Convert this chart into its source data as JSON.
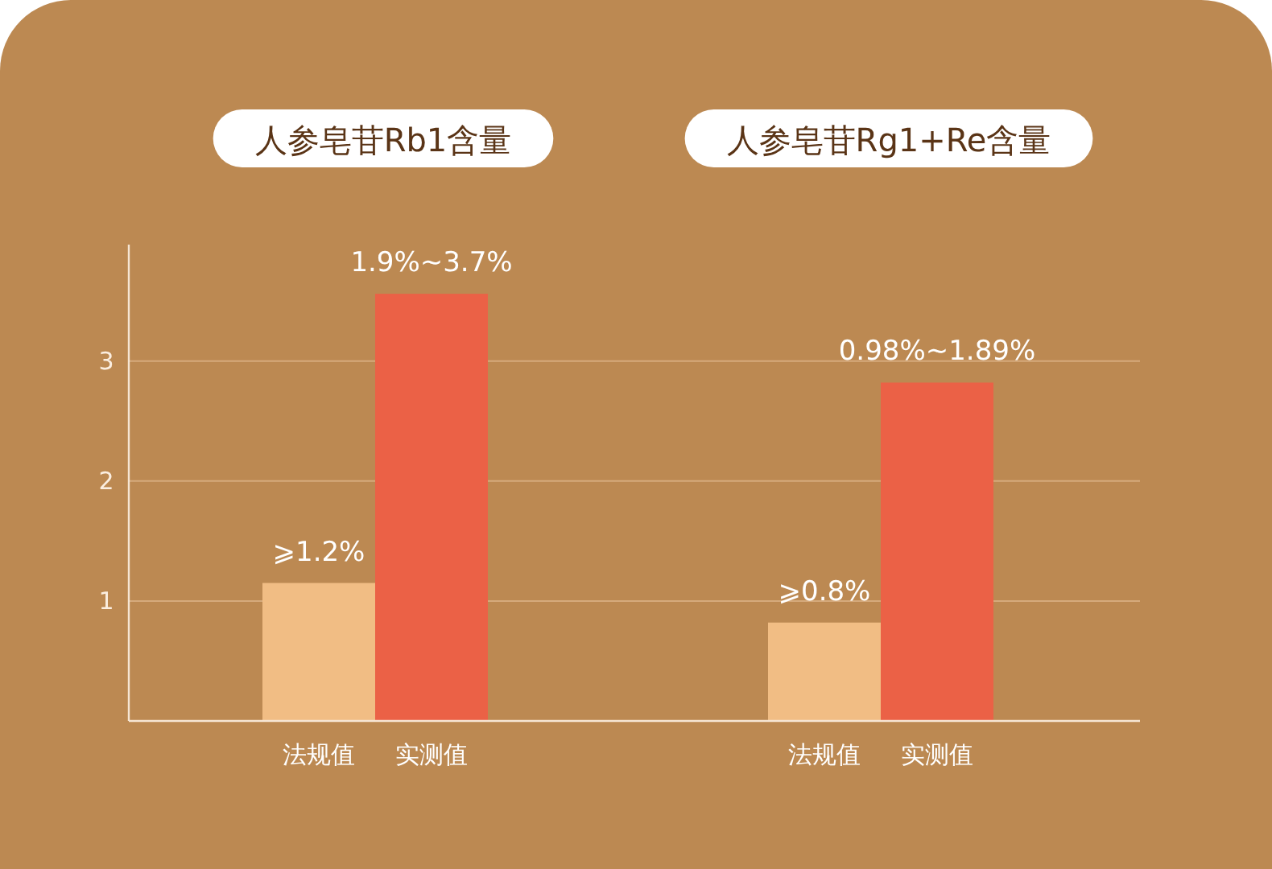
{
  "chart_data": {
    "type": "bar",
    "categories": [
      "人参皂苷Rb1含量",
      "人参皂苷Rg1+Re含量"
    ],
    "series": [
      {
        "name": "法规值",
        "color": "#f1bd84",
        "values": [
          1.15,
          0.82
        ],
        "value_labels": [
          "⩾1.2%",
          "⩾0.8%"
        ]
      },
      {
        "name": "实测值",
        "color": "#eb6146",
        "values": [
          3.56,
          2.82
        ]
      }
    ],
    "annotations": [
      {
        "text": "1.9%~3.7%",
        "x": "人参皂苷Rb1含量",
        "y": 3.56
      },
      {
        "text": "0.98%~1.89%",
        "x": "人参皂苷Rg1+Re含量",
        "y": 2.82
      }
    ],
    "ylim": [
      0,
      3.97
    ],
    "yticks": [
      1,
      2,
      3
    ],
    "grid": "y"
  }
}
